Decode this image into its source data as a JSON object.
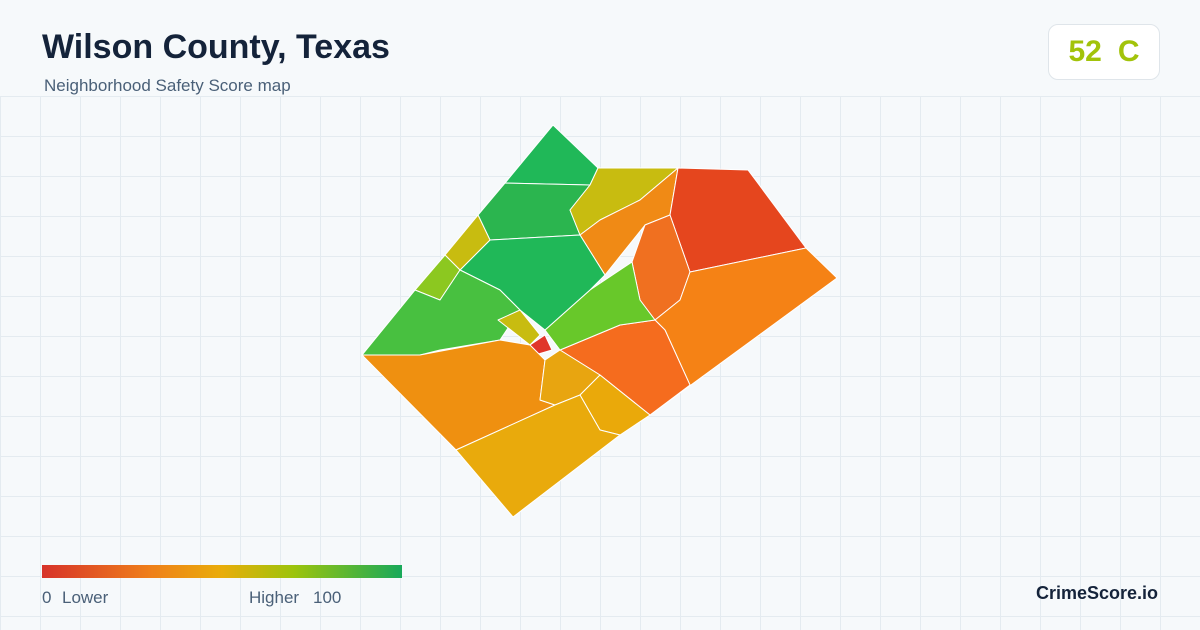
{
  "header": {
    "title": "Wilson County, Texas",
    "subtitle": "Neighborhood Safety Score map"
  },
  "score": {
    "value": 52,
    "grade": "C"
  },
  "legend": {
    "min": 0,
    "min_label": "Lower",
    "max_label": "Higher",
    "max": 100
  },
  "footer": {
    "brand": "CrimeScore.io"
  }
}
